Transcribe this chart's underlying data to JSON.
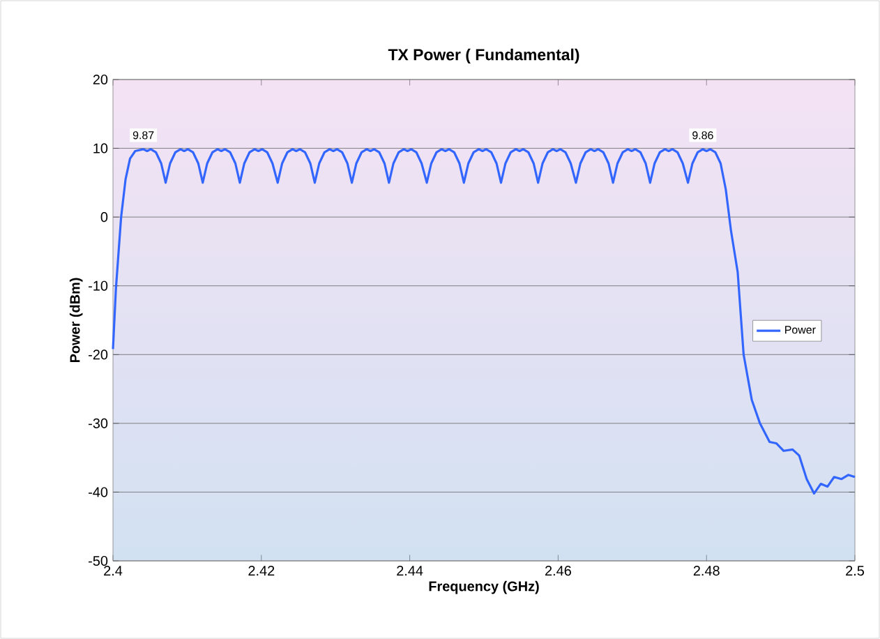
{
  "chart_data": {
    "type": "line",
    "title": "TX Power ( Fundamental)",
    "xlabel": "Frequency (GHz)",
    "ylabel": "Power (dBm)",
    "series": [
      {
        "name": "Power",
        "color": "#3366ff",
        "x": [
          2.4,
          2.4004,
          2.4011,
          2.4017,
          2.4023,
          2.403,
          2.4041,
          2.4046,
          2.4051,
          2.4058,
          2.4065,
          2.4071,
          2.4077,
          2.4084,
          2.4091,
          2.4096,
          2.4101,
          2.4108,
          2.4115,
          2.4121,
          2.4127,
          2.4134,
          2.4141,
          2.4146,
          2.4151,
          2.4158,
          2.4165,
          2.4171,
          2.4177,
          2.4184,
          2.4191,
          2.4196,
          2.4201,
          2.4208,
          2.4215,
          2.4222,
          2.4228,
          2.4235,
          2.4242,
          2.4247,
          2.4252,
          2.4259,
          2.4266,
          2.4272,
          2.4278,
          2.4285,
          2.4292,
          2.4297,
          2.4302,
          2.4309,
          2.4316,
          2.4322,
          2.4328,
          2.4335,
          2.4342,
          2.4347,
          2.4352,
          2.4359,
          2.4366,
          2.4372,
          2.4378,
          2.4385,
          2.4392,
          2.4397,
          2.4402,
          2.4409,
          2.4416,
          2.4423,
          2.4429,
          2.4436,
          2.4443,
          2.4448,
          2.4453,
          2.446,
          2.4467,
          2.4473,
          2.4479,
          2.4486,
          2.4493,
          2.4498,
          2.4503,
          2.451,
          2.4517,
          2.4523,
          2.4529,
          2.4536,
          2.4543,
          2.4548,
          2.4553,
          2.456,
          2.4567,
          2.4573,
          2.4579,
          2.4586,
          2.4593,
          2.4598,
          2.4603,
          2.461,
          2.4617,
          2.4624,
          2.463,
          2.4637,
          2.4644,
          2.4649,
          2.4654,
          2.4661,
          2.4668,
          2.4674,
          2.468,
          2.4687,
          2.4694,
          2.4699,
          2.4704,
          2.4711,
          2.4718,
          2.4724,
          2.473,
          2.4737,
          2.4744,
          2.4749,
          2.4754,
          2.4761,
          2.4768,
          2.4775,
          2.4781,
          2.4788,
          2.4795,
          2.48,
          2.4805,
          2.4812,
          2.4819,
          2.4826,
          2.4833,
          2.4842,
          2.485,
          2.4861,
          2.4872,
          2.4885,
          2.4894,
          2.4904,
          2.4916,
          2.4925,
          2.4935,
          2.4945,
          2.4954,
          2.4963,
          2.4972,
          2.4982,
          2.4991,
          2.5
        ],
        "values": [
          -19.2,
          -10.4,
          0,
          5.5,
          8.5,
          9.6,
          9.87,
          9.6,
          9.87,
          9.4,
          7.8,
          5.0,
          7.8,
          9.4,
          9.87,
          9.6,
          9.87,
          9.4,
          7.8,
          5.0,
          7.8,
          9.4,
          9.87,
          9.6,
          9.87,
          9.4,
          7.8,
          5.0,
          7.8,
          9.4,
          9.87,
          9.6,
          9.87,
          9.4,
          7.8,
          5.0,
          7.8,
          9.4,
          9.87,
          9.6,
          9.87,
          9.4,
          7.8,
          5.0,
          7.8,
          9.4,
          9.87,
          9.6,
          9.87,
          9.4,
          7.8,
          5.0,
          7.8,
          9.4,
          9.87,
          9.6,
          9.87,
          9.4,
          7.8,
          5.0,
          7.8,
          9.4,
          9.87,
          9.6,
          9.87,
          9.4,
          7.8,
          5.0,
          7.8,
          9.4,
          9.87,
          9.6,
          9.87,
          9.4,
          7.8,
          5.0,
          7.8,
          9.4,
          9.87,
          9.6,
          9.87,
          9.4,
          7.8,
          5.0,
          7.8,
          9.4,
          9.87,
          9.6,
          9.87,
          9.4,
          7.8,
          5.0,
          7.8,
          9.4,
          9.87,
          9.6,
          9.87,
          9.4,
          7.8,
          5.0,
          7.8,
          9.4,
          9.87,
          9.6,
          9.87,
          9.4,
          7.8,
          5.0,
          7.8,
          9.4,
          9.87,
          9.6,
          9.87,
          9.4,
          7.8,
          5.0,
          7.8,
          9.4,
          9.87,
          9.6,
          9.87,
          9.4,
          7.8,
          5.0,
          7.8,
          9.4,
          9.86,
          9.6,
          9.86,
          9.4,
          7.8,
          4.0,
          -2.0,
          -8.0,
          -20.0,
          -26.6,
          -30.0,
          -32.7,
          -32.9,
          -34.0,
          -33.8,
          -34.7,
          -38.1,
          -40.2,
          -38.8,
          -39.2,
          -37.8,
          -38.1,
          -37.5,
          -37.8
        ]
      }
    ],
    "annotations": [
      {
        "text": "9.87",
        "x": 2.4041,
        "y": 9.87
      },
      {
        "text": "9.86",
        "x": 2.4795,
        "y": 9.86
      }
    ],
    "xlim": [
      2.4,
      2.5
    ],
    "xticks": [
      2.4,
      2.42,
      2.44,
      2.46,
      2.48,
      2.5
    ],
    "ylim": [
      -50,
      20
    ],
    "yticks": [
      -50,
      -40,
      -30,
      -20,
      -10,
      0,
      10,
      20
    ],
    "grid": "y",
    "legend": "right",
    "marker": "none",
    "line_style": "solid"
  }
}
